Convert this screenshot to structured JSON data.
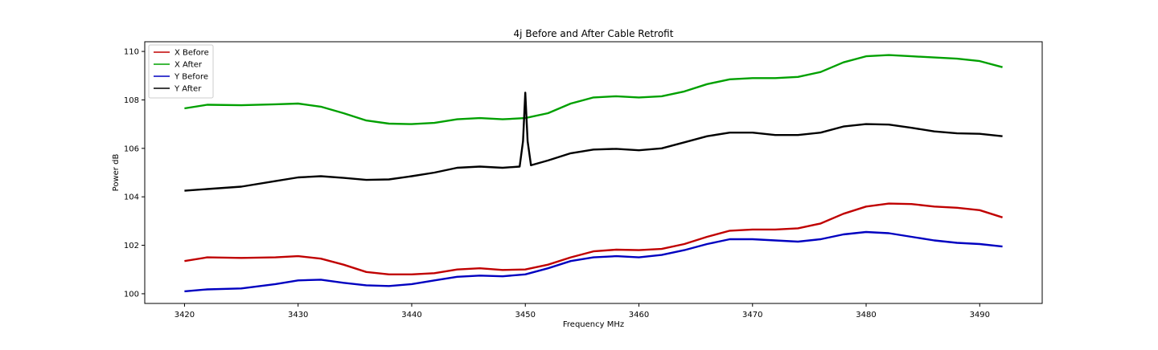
{
  "chart_data": {
    "type": "line",
    "title": "4j Before and After Cable Retrofit",
    "xlabel": "Frequency MHz",
    "ylabel": "Power dB",
    "xlim": [
      3416.5,
      3495.5
    ],
    "ylim": [
      99.6,
      110.4
    ],
    "xticks": [
      3420,
      3430,
      3440,
      3450,
      3460,
      3470,
      3480,
      3490
    ],
    "yticks": [
      100,
      102,
      104,
      106,
      108,
      110
    ],
    "grid": false,
    "legend_position": "top-left",
    "series": [
      {
        "name": "X Before",
        "color": "#c00000",
        "x": [
          3420,
          3422,
          3425,
          3428,
          3430,
          3432,
          3434,
          3436,
          3438,
          3440,
          3442,
          3444,
          3446,
          3448,
          3450,
          3452,
          3454,
          3456,
          3458,
          3460,
          3462,
          3464,
          3466,
          3468,
          3470,
          3472,
          3474,
          3476,
          3478,
          3480,
          3482,
          3484,
          3486,
          3488,
          3490,
          3492
        ],
        "y": [
          101.35,
          101.5,
          101.48,
          101.5,
          101.55,
          101.45,
          101.2,
          100.9,
          100.8,
          100.8,
          100.85,
          101.0,
          101.05,
          100.98,
          101.0,
          101.2,
          101.5,
          101.75,
          101.82,
          101.8,
          101.85,
          102.05,
          102.35,
          102.6,
          102.65,
          102.65,
          102.7,
          102.9,
          103.3,
          103.6,
          103.72,
          103.7,
          103.6,
          103.55,
          103.45,
          103.15
        ]
      },
      {
        "name": "X After",
        "color": "#00a000",
        "x": [
          3420,
          3422,
          3425,
          3428,
          3430,
          3432,
          3434,
          3436,
          3438,
          3440,
          3442,
          3444,
          3446,
          3448,
          3450,
          3452,
          3454,
          3456,
          3458,
          3460,
          3462,
          3464,
          3466,
          3468,
          3470,
          3472,
          3474,
          3476,
          3478,
          3480,
          3482,
          3484,
          3486,
          3488,
          3490,
          3492
        ],
        "y": [
          107.65,
          107.8,
          107.78,
          107.82,
          107.85,
          107.72,
          107.45,
          107.15,
          107.02,
          107.0,
          107.05,
          107.2,
          107.25,
          107.2,
          107.25,
          107.45,
          107.85,
          108.1,
          108.15,
          108.1,
          108.15,
          108.35,
          108.65,
          108.85,
          108.9,
          108.9,
          108.95,
          109.15,
          109.55,
          109.8,
          109.85,
          109.8,
          109.75,
          109.7,
          109.6,
          109.35
        ]
      },
      {
        "name": "Y Before",
        "color": "#0000c0",
        "x": [
          3420,
          3422,
          3425,
          3428,
          3430,
          3432,
          3434,
          3436,
          3438,
          3440,
          3442,
          3444,
          3446,
          3448,
          3450,
          3452,
          3454,
          3456,
          3458,
          3460,
          3462,
          3464,
          3466,
          3468,
          3470,
          3472,
          3474,
          3476,
          3478,
          3480,
          3482,
          3484,
          3486,
          3488,
          3490,
          3492
        ],
        "y": [
          100.1,
          100.18,
          100.22,
          100.4,
          100.55,
          100.58,
          100.45,
          100.35,
          100.32,
          100.4,
          100.55,
          100.7,
          100.75,
          100.72,
          100.8,
          101.05,
          101.35,
          101.5,
          101.55,
          101.5,
          101.6,
          101.8,
          102.05,
          102.25,
          102.25,
          102.2,
          102.15,
          102.25,
          102.45,
          102.55,
          102.5,
          102.35,
          102.2,
          102.1,
          102.05,
          101.95
        ]
      },
      {
        "name": "Y After",
        "color": "#000000",
        "x": [
          3420,
          3422,
          3425,
          3428,
          3430,
          3432,
          3434,
          3436,
          3438,
          3440,
          3442,
          3444,
          3446,
          3448,
          3449.5,
          3449.8,
          3450,
          3450.2,
          3450.5,
          3452,
          3454,
          3456,
          3458,
          3460,
          3462,
          3464,
          3466,
          3468,
          3470,
          3472,
          3474,
          3476,
          3478,
          3480,
          3482,
          3484,
          3486,
          3488,
          3490,
          3492
        ],
        "y": [
          104.25,
          104.32,
          104.42,
          104.65,
          104.8,
          104.85,
          104.78,
          104.7,
          104.72,
          104.85,
          105.0,
          105.2,
          105.25,
          105.2,
          105.25,
          106.3,
          108.3,
          106.3,
          105.3,
          105.5,
          105.8,
          105.95,
          105.98,
          105.92,
          106.0,
          106.25,
          106.5,
          106.65,
          106.65,
          106.55,
          106.55,
          106.65,
          106.9,
          107.0,
          106.98,
          106.85,
          106.7,
          106.62,
          106.6,
          106.5
        ]
      }
    ]
  }
}
